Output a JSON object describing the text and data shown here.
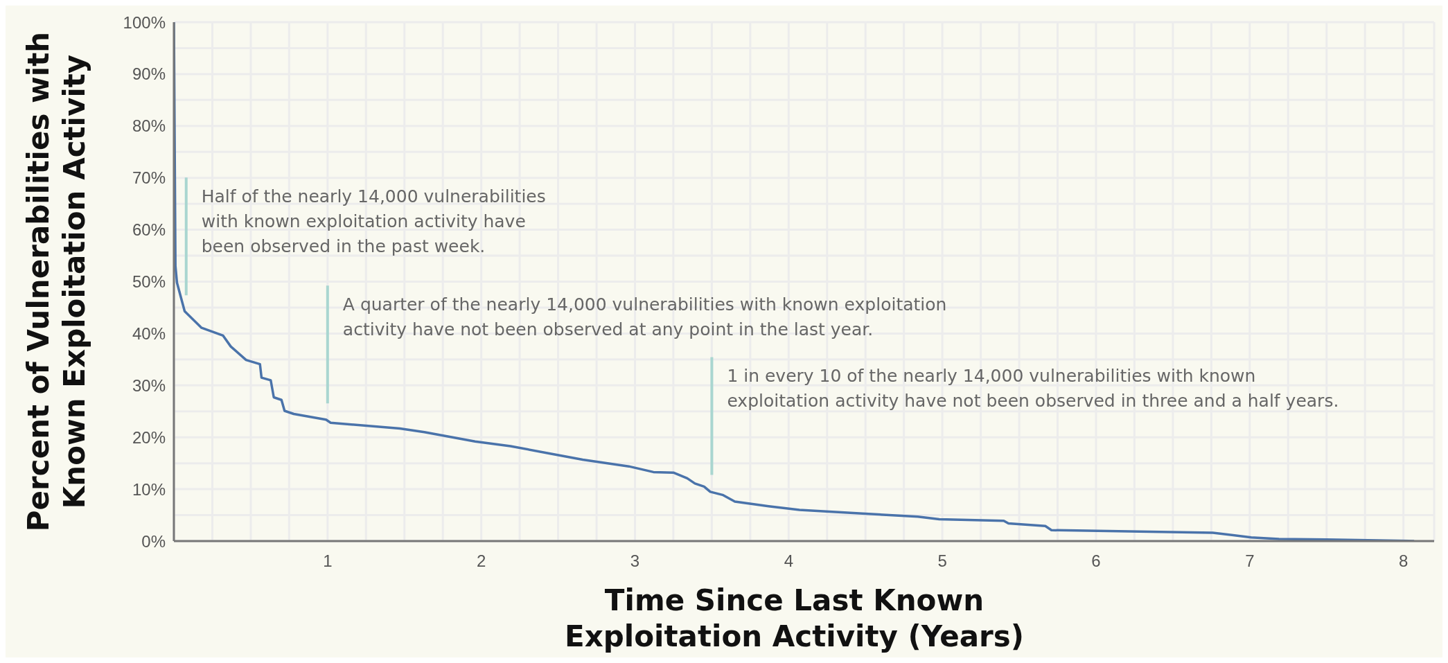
{
  "chart_data": {
    "type": "line",
    "xlabel": "Time Since Last Known\nExploitation Activity (Years)",
    "ylabel": "Percent of Vulnerabilities with\nKnown Exploitation Activity",
    "x": [
      0,
      0.01,
      0.02,
      0.07,
      0.18,
      0.32,
      0.37,
      0.47,
      0.56,
      0.57,
      0.63,
      0.65,
      0.7,
      0.72,
      0.78,
      0.99,
      1.02,
      1.47,
      1.63,
      1.96,
      2.19,
      2.46,
      2.66,
      2.96,
      3.12,
      3.25,
      3.34,
      3.39,
      3.45,
      3.49,
      3.57,
      3.65,
      3.87,
      4.07,
      4.48,
      4.84,
      4.98,
      5.4,
      5.43,
      5.67,
      5.71,
      6.76,
      7.01,
      7.19,
      7.5,
      8.07
    ],
    "series": [
      {
        "color": "#4a73aa",
        "values": [
          100,
          53,
          49.8,
          44.3,
          41.1,
          39.6,
          37.5,
          34.9,
          34.1,
          31.5,
          31,
          27.7,
          27.2,
          25.1,
          24.5,
          23.4,
          22.8,
          21.7,
          21,
          19.2,
          18.3,
          16.8,
          15.7,
          14.4,
          13.3,
          13.2,
          12.1,
          11.1,
          10.5,
          9.5,
          8.9,
          7.6,
          6.7,
          6,
          5.3,
          4.7,
          4.2,
          3.9,
          3.4,
          2.9,
          2.1,
          1.6,
          0.7,
          0.4,
          0.3,
          0
        ]
      }
    ],
    "xlim": [
      0,
      8.2
    ],
    "ylim": [
      0,
      100
    ],
    "xticks": [
      {
        "value": 0.25,
        "label": null
      },
      {
        "value": 0.5,
        "label": null
      },
      {
        "value": 0.75,
        "label": null
      },
      1,
      {
        "value": 1.25,
        "label": null
      },
      {
        "value": 1.5,
        "label": null
      },
      {
        "value": 1.75,
        "label": null
      },
      2,
      {
        "value": 2.25,
        "label": null
      },
      {
        "value": 2.5,
        "label": null
      },
      {
        "value": 2.75,
        "label": null
      },
      3,
      {
        "value": 3.25,
        "label": null
      },
      {
        "value": 3.5,
        "label": null
      },
      {
        "value": 3.75,
        "label": null
      },
      4,
      {
        "value": 4.25,
        "label": null
      },
      {
        "value": 4.5,
        "label": null
      },
      {
        "value": 4.75,
        "label": null
      },
      5,
      {
        "value": 5.25,
        "label": null
      },
      {
        "value": 5.5,
        "label": null
      },
      {
        "value": 5.75,
        "label": null
      },
      6,
      {
        "value": 6.25,
        "label": null
      },
      {
        "value": 6.5,
        "label": null
      },
      {
        "value": 6.75,
        "label": null
      },
      7,
      {
        "value": 7.25,
        "label": null
      },
      {
        "value": 7.5,
        "label": null
      },
      {
        "value": 7.75,
        "label": null
      },
      8
    ],
    "yticks": [
      {
        "value": 0,
        "label": "0%"
      },
      {
        "value": 5,
        "label": null
      },
      {
        "value": 10,
        "label": "10%"
      },
      {
        "value": 15,
        "label": null
      },
      {
        "value": 20,
        "label": "20%"
      },
      {
        "value": 25,
        "label": null
      },
      {
        "value": 30,
        "label": "30%"
      },
      {
        "value": 35,
        "label": null
      },
      {
        "value": 40,
        "label": "40%"
      },
      {
        "value": 45,
        "label": null
      },
      {
        "value": 50,
        "label": "50%"
      },
      {
        "value": 55,
        "label": null
      },
      {
        "value": 60,
        "label": "60%"
      },
      {
        "value": 65,
        "label": null
      },
      {
        "value": 70,
        "label": "70%"
      },
      {
        "value": 75,
        "label": null
      },
      {
        "value": 80,
        "label": "80%"
      },
      {
        "value": 85,
        "label": null
      },
      {
        "value": 90,
        "label": "90%"
      },
      {
        "value": 95,
        "label": null
      },
      {
        "value": 100,
        "label": "100%"
      }
    ],
    "grid": true,
    "legend": false,
    "marker": "none",
    "line_style": "solid",
    "ref_lines": [
      {
        "axis": "x",
        "value": 0.08,
        "color": "#a9d6d0",
        "label": "Half of the nearly 14,000 vulnerabilities\nwith known exploitation activity have\nbeen observed in the past week."
      },
      {
        "axis": "x",
        "value": 1,
        "color": "#a9d6d0",
        "label": "A quarter of the nearly 14,000 vulnerabilities with known exploitation\nactivity have not been observed at any point in the last year."
      },
      {
        "axis": "x",
        "value": 3.5,
        "color": "#a9d6d0",
        "label": "1 in every 10 of the nearly 14,000 vulnerabilities with known\nexploitation activity have not been observed in three and a half years."
      }
    ]
  }
}
